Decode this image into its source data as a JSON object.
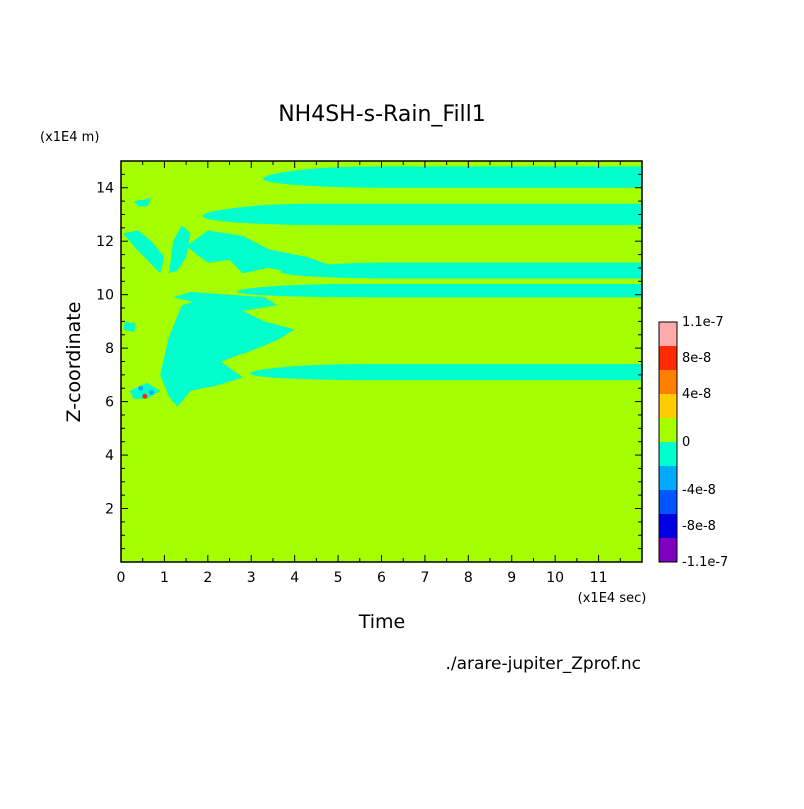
{
  "chart_data": {
    "type": "heatmap",
    "title": "NH4SH-s-Rain_Fill1",
    "xlabel": "Time",
    "ylabel": "Z-coordinate",
    "x_unit": "(x1E4 sec)",
    "y_unit": "(x1E4 m)",
    "source": "./arare-jupiter_Zprof.nc",
    "xlim": [
      0,
      12
    ],
    "ylim": [
      0,
      15
    ],
    "x_ticks": [
      "0",
      "1",
      "2",
      "3",
      "4",
      "5",
      "6",
      "7",
      "8",
      "9",
      "10",
      "11"
    ],
    "y_ticks": [
      "2",
      "4",
      "6",
      "8",
      "10",
      "12",
      "14"
    ],
    "background_level": "0",
    "colorbar": {
      "labels": [
        "1.1e-7",
        "8e-8",
        "4e-8",
        "0",
        "-4e-8",
        "-8e-8",
        "-1.1e-7"
      ],
      "colors": [
        "#ffaaaa",
        "#ff2a00",
        "#ff7f00",
        "#ffcc00",
        "#a5ff00",
        "#00ffcc",
        "#00aaff",
        "#0055ff",
        "#0000e0",
        "#7f00bf"
      ]
    },
    "bands": [
      {
        "level": "-4e-8 to 0",
        "color": "#00ffcc",
        "y_range": [
          14.0,
          14.8
        ],
        "x_range": [
          2.6,
          12.0
        ]
      },
      {
        "level": "-4e-8 to 0",
        "color": "#00ffcc",
        "y_range": [
          12.6,
          13.4
        ],
        "x_range": [
          1.2,
          12.0
        ]
      },
      {
        "level": "-4e-8 to 0",
        "color": "#00ffcc",
        "y_range": [
          10.6,
          11.2
        ],
        "x_range": [
          3.0,
          12.0
        ]
      },
      {
        "level": "-4e-8 to 0",
        "color": "#00ffcc",
        "y_range": [
          9.9,
          10.4
        ],
        "x_range": [
          2.0,
          12.0
        ]
      },
      {
        "level": "-4e-8 to 0",
        "color": "#00ffcc",
        "y_range": [
          6.8,
          7.4
        ],
        "x_range": [
          2.3,
          12.0
        ]
      }
    ]
  }
}
